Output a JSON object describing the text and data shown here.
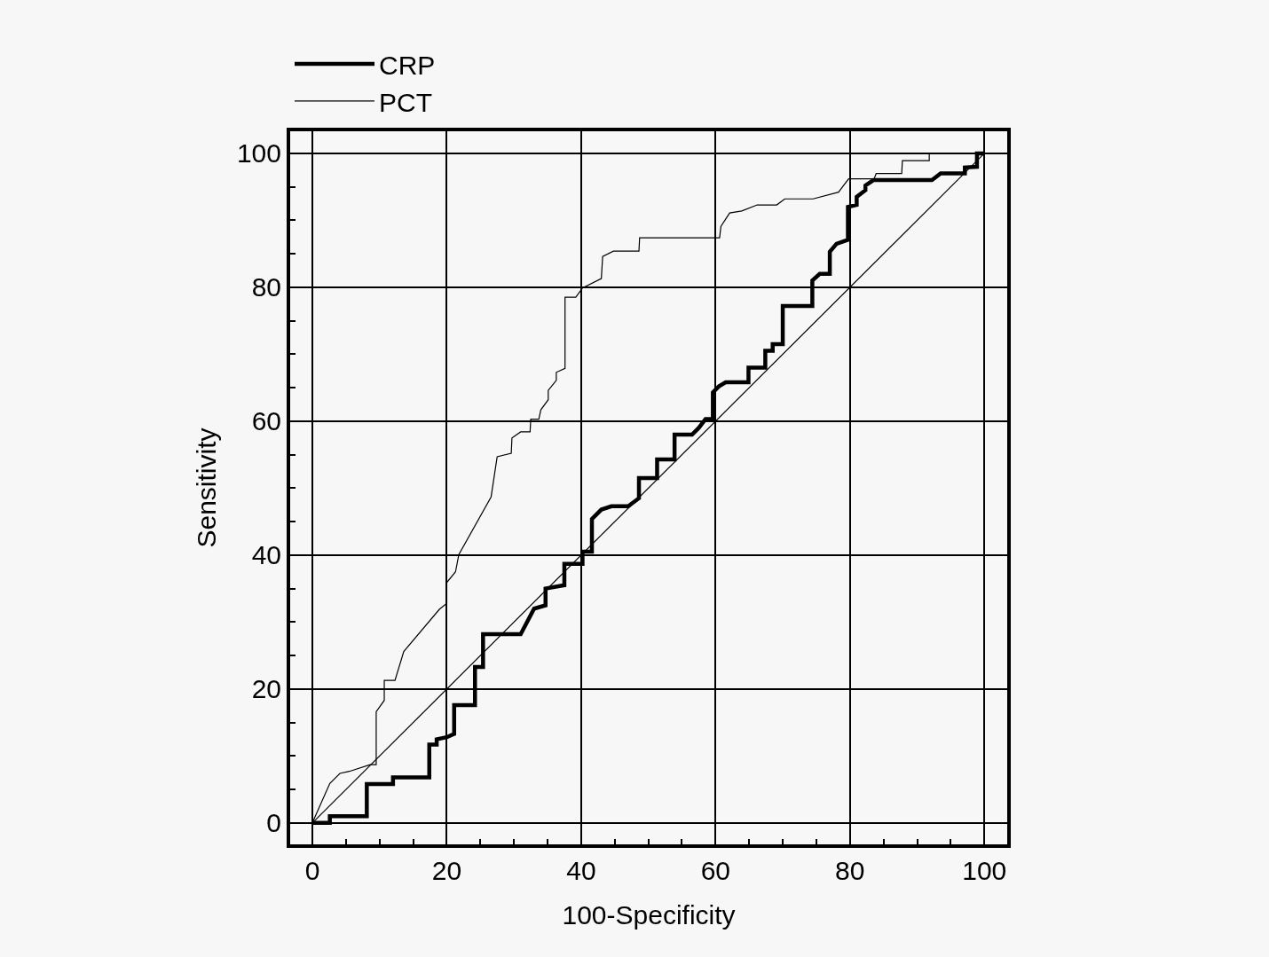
{
  "chart_data": {
    "type": "line",
    "xlabel": "100-Specificity",
    "ylabel": "Sensitivity",
    "series": [
      {
        "name": "CRP",
        "color": "#000000",
        "x": [
          0,
          2.6,
          2.6,
          8.1,
          8.1,
          12,
          12,
          17.4,
          17.4,
          18.5,
          18.5,
          20,
          21.1,
          21.1,
          24.2,
          24.2,
          25.4,
          25.4,
          31,
          33,
          34.7,
          34.7,
          37.5,
          37.5,
          40.2,
          40.2,
          41.6,
          41.6,
          43,
          44.5,
          47,
          48.6,
          48.6,
          51.3,
          51.3,
          53.9,
          53.9,
          56.5,
          57.5,
          58.5,
          59.6,
          59.6,
          60.5,
          61.5,
          64.9,
          64.9,
          67.4,
          67.4,
          68.5,
          68.5,
          70,
          70,
          74.4,
          74.4,
          75.5,
          77,
          77,
          78,
          79.7,
          79.7,
          81,
          81,
          82.3,
          82.3,
          83.5,
          92.2,
          93.5,
          97.1,
          97.1,
          98.9,
          98.9,
          100
        ],
        "values": [
          0,
          0,
          1,
          1,
          5.8,
          5.8,
          6.8,
          6.8,
          11.7,
          11.7,
          12.5,
          12.8,
          13.3,
          17.6,
          17.6,
          23.3,
          23.3,
          28.2,
          28.2,
          32,
          32.5,
          35,
          35.5,
          38.7,
          38.7,
          40.5,
          40.5,
          45.4,
          46.8,
          47.3,
          47.3,
          48.5,
          51.5,
          51.5,
          54.3,
          54.3,
          58,
          58,
          59,
          60.3,
          60.3,
          64.3,
          65.2,
          65.8,
          65.8,
          68,
          68,
          70.5,
          70.5,
          71.5,
          71.5,
          77.2,
          77.2,
          81,
          82,
          82,
          85.3,
          86.5,
          87.1,
          92,
          92.3,
          93.5,
          94.5,
          95.2,
          96,
          96,
          97,
          97,
          97.9,
          98,
          100,
          100
        ]
      },
      {
        "name": "PCT",
        "color": "#000000",
        "x": [
          0,
          2.6,
          4.1,
          5.5,
          8.6,
          9.5,
          9.5,
          10.7,
          10.7,
          12.3,
          13.6,
          18.9,
          20,
          20,
          21.3,
          21.8,
          26.6,
          27.5,
          29.6,
          29.7,
          31,
          32.4,
          32.5,
          33.7,
          34,
          35.1,
          35.1,
          36.3,
          36.3,
          37.6,
          37.6,
          39.2,
          40.2,
          43,
          43.2,
          44.8,
          48.6,
          48.7,
          60.6,
          60.8,
          62.1,
          63.9,
          66.2,
          69.1,
          70.3,
          74.5,
          78.3,
          79.8,
          83.6,
          83.9,
          87.7,
          87.8,
          91.8,
          91.8,
          100
        ],
        "values": [
          0,
          5.9,
          7.4,
          7.7,
          8.7,
          8.7,
          16.6,
          18.3,
          21.3,
          21.3,
          25.6,
          31.9,
          32.8,
          35.9,
          37.5,
          40.1,
          48.7,
          54.7,
          55.2,
          57.5,
          58.4,
          58.4,
          60.3,
          60.3,
          61.7,
          63.2,
          64.6,
          66.1,
          67.3,
          67.9,
          78.5,
          78.5,
          79.9,
          81.3,
          84.6,
          85.4,
          85.4,
          87.4,
          87.4,
          89.1,
          91.1,
          91.4,
          92.3,
          92.3,
          93.2,
          93.2,
          94.2,
          96.2,
          96.2,
          97,
          97,
          98.9,
          98.9,
          100,
          100
        ]
      },
      {
        "color": "#000000",
        "x": [
          0,
          100
        ],
        "values": [
          0,
          100
        ]
      }
    ],
    "xlim": [
      -3.3,
      103.4
    ],
    "ylim": [
      -3.2,
      103.3
    ],
    "xticks": [
      0,
      20,
      40,
      60,
      80,
      100
    ],
    "yticks": [
      0,
      20,
      40,
      60,
      80,
      100
    ],
    "grid": true,
    "legend": "top left",
    "marker": "none",
    "line_style": "solid"
  }
}
